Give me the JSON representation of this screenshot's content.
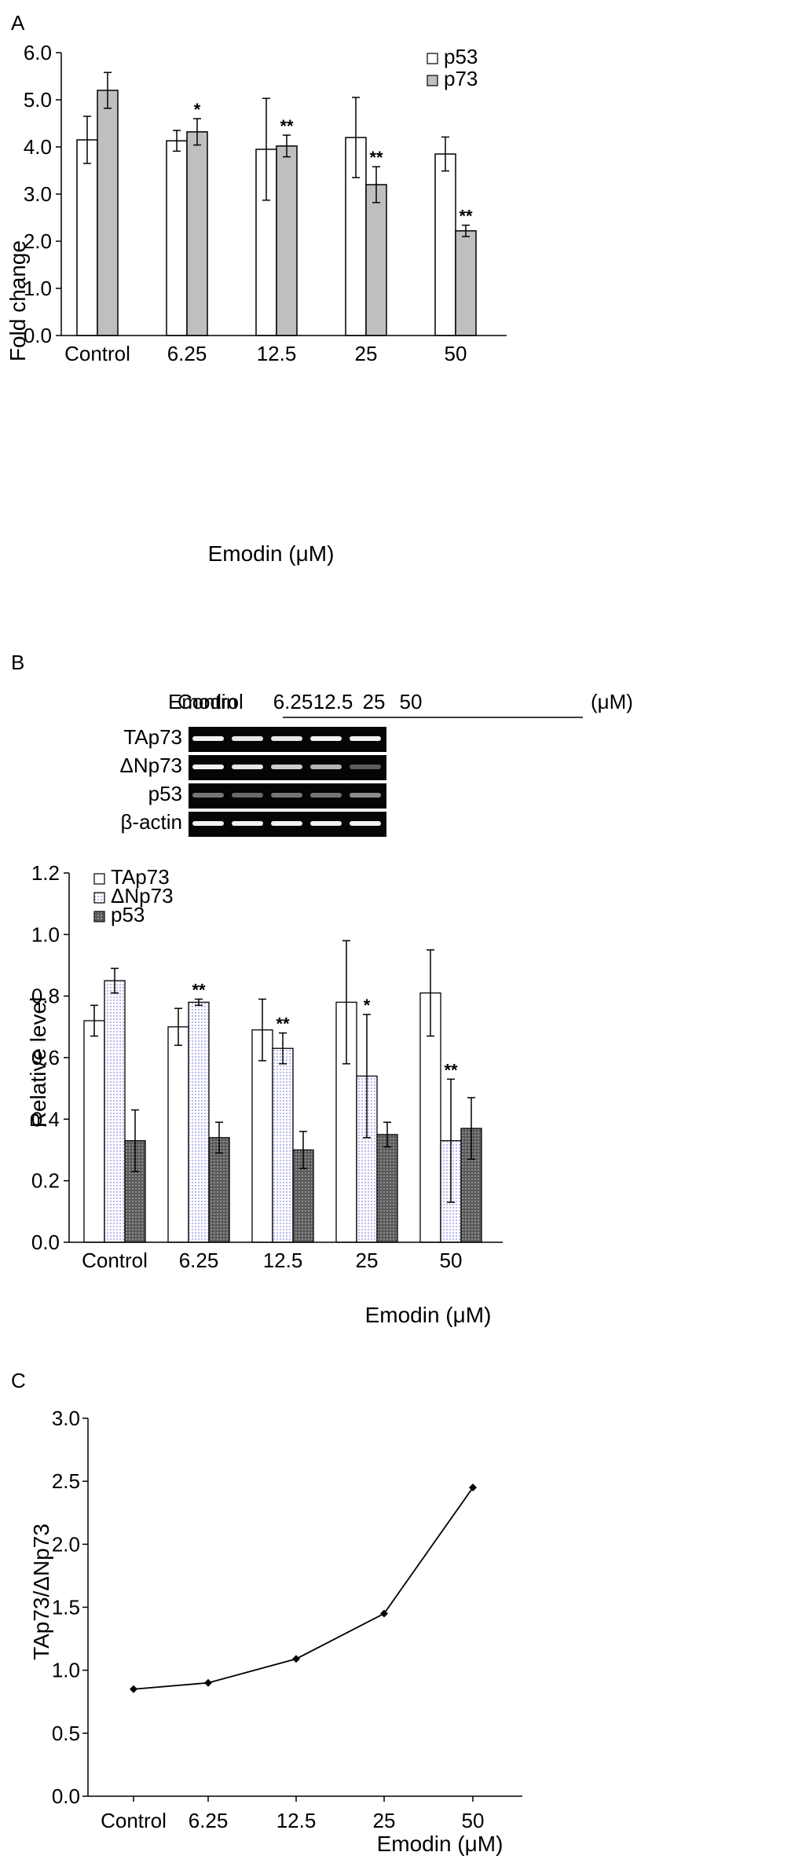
{
  "chart_data": [
    {
      "panel": "A",
      "type": "bar",
      "categories": [
        "Control",
        "6.25",
        "12.5",
        "25",
        "50"
      ],
      "xlabel": "Emodin (μM)",
      "ylabel": "Fold change",
      "ylim": [
        0,
        6
      ],
      "yticks": [
        "0.0",
        "1.0",
        "2.0",
        "3.0",
        "4.0",
        "5.0",
        "6.0"
      ],
      "legend_position": "top-right",
      "series": [
        {
          "name": "p53",
          "color": "#ffffff",
          "values": [
            4.15,
            4.13,
            3.95,
            4.2,
            3.85
          ],
          "errors": [
            0.5,
            0.22,
            1.08,
            0.85,
            0.36
          ],
          "significance": [
            "",
            "",
            "",
            "",
            ""
          ]
        },
        {
          "name": "p73",
          "color": "#bfbfbf",
          "values": [
            5.2,
            4.32,
            4.02,
            3.2,
            2.22
          ],
          "errors": [
            0.38,
            0.28,
            0.23,
            0.38,
            0.12
          ],
          "significance": [
            "",
            "*",
            "**",
            "**",
            "**"
          ]
        }
      ]
    },
    {
      "panel": "B",
      "type": "bar",
      "gel": {
        "header_label": "Emodin",
        "lanes": [
          "Control",
          "6.25",
          "12.5",
          "25",
          "50"
        ],
        "unit": "(μM)",
        "rows": [
          "TAp73",
          "ΔNp73",
          "p53",
          "β-actin"
        ]
      },
      "categories": [
        "Control",
        "6.25",
        "12.5",
        "25",
        "50"
      ],
      "xlabel": "Emodin (μM)",
      "ylabel": "Relative level",
      "ylim": [
        0,
        1.2
      ],
      "yticks": [
        "0.0",
        "0.2",
        "0.4",
        "0.6",
        "0.8",
        "1.0",
        "1.2"
      ],
      "legend_position": "top-left",
      "series": [
        {
          "name": "TAp73",
          "color": "#ffffff",
          "values": [
            0.72,
            0.7,
            0.69,
            0.78,
            0.81
          ],
          "errors": [
            0.05,
            0.06,
            0.1,
            0.2,
            0.14
          ],
          "significance": [
            "",
            "",
            "",
            "",
            ""
          ]
        },
        {
          "name": "ΔNp73",
          "color": "#c8c8f0",
          "values": [
            0.85,
            0.78,
            0.63,
            0.54,
            0.33
          ],
          "errors": [
            0.04,
            0.01,
            0.05,
            0.2,
            0.2
          ],
          "significance": [
            "",
            "**",
            "**",
            "*",
            "**"
          ]
        },
        {
          "name": "p53",
          "color": "#707070",
          "values": [
            0.33,
            0.34,
            0.3,
            0.35,
            0.37
          ],
          "errors": [
            0.1,
            0.05,
            0.06,
            0.04,
            0.1
          ],
          "significance": [
            "",
            "",
            "",
            "",
            ""
          ]
        }
      ]
    },
    {
      "panel": "C",
      "type": "line",
      "categories": [
        "Control",
        "6.25",
        "12.5",
        "25",
        "50"
      ],
      "xlabel": "Emodin (μM)",
      "ylabel": "TAp73/ΔNp73",
      "ylim": [
        0,
        3
      ],
      "yticks": [
        "0.0",
        "0.5",
        "1.0",
        "1.5",
        "2.0",
        "2.5",
        "3.0"
      ],
      "series": [
        {
          "name": "",
          "color": "#000000",
          "values": [
            0.85,
            0.9,
            1.09,
            1.45,
            2.45
          ]
        }
      ]
    }
  ]
}
